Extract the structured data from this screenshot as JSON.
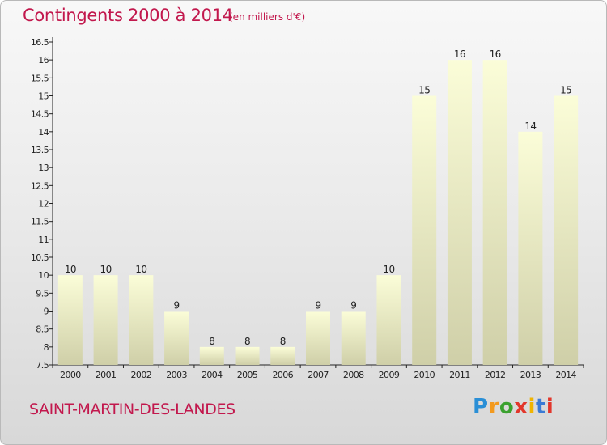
{
  "header": {
    "title": "Contingents 2000 à 2014",
    "unit": "(en milliers d'€)"
  },
  "footer": {
    "commune": "SAINT-MARTIN-DES-LANDES",
    "logo_letters": [
      "P",
      "r",
      "o",
      "x",
      "i",
      "t",
      "i"
    ]
  },
  "colors": {
    "accent": "#c2184d",
    "bar_top": "#fbfdd8",
    "bar_bottom": "#cfcfa8"
  },
  "chart_data": {
    "type": "bar",
    "categories": [
      "2000",
      "2001",
      "2002",
      "2003",
      "2004",
      "2005",
      "2006",
      "2007",
      "2008",
      "2009",
      "2010",
      "2011",
      "2012",
      "2013",
      "2014"
    ],
    "values": [
      10,
      10,
      10,
      9,
      8,
      8,
      8,
      9,
      9,
      10,
      15,
      16,
      16,
      14,
      15
    ],
    "ylim": [
      7.5,
      16.5
    ],
    "yticks": [
      "7.5",
      "8",
      "8.5",
      "9",
      "9.5",
      "10",
      "10.5",
      "11",
      "11.5",
      "12",
      "12.5",
      "13",
      "13.5",
      "14",
      "14.5",
      "15",
      "15.5",
      "16",
      "16.5"
    ],
    "grid": false,
    "title": "Contingents 2000 à 2014",
    "xlabel": "",
    "ylabel": ""
  }
}
